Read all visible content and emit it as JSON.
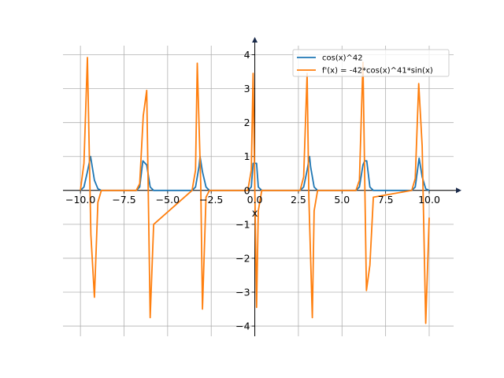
{
  "chart_data": {
    "type": "line",
    "title": "",
    "xlabel": "x",
    "ylabel": "",
    "xlim": [
      -11.0,
      11.4
    ],
    "ylim": [
      -4.3,
      4.5
    ],
    "xticks": [
      -10.0,
      -7.5,
      -5.0,
      -2.5,
      0.0,
      2.5,
      5.0,
      7.5,
      10.0
    ],
    "xtick_labels": [
      "−10.0",
      "−7.5",
      "−5.0",
      "−2.5",
      "0.0",
      "2.5",
      "5.0",
      "7.5",
      "10.0"
    ],
    "yticks": [
      -4,
      -3,
      -2,
      -1,
      0,
      1,
      2,
      3,
      4
    ],
    "ytick_labels": [
      "−4",
      "−3",
      "−2",
      "−1",
      "0",
      "1",
      "2",
      "3",
      "4"
    ],
    "grid": true,
    "legend": "top-right",
    "series": [
      {
        "name": "cos(x)^42",
        "color": "#1f77b4",
        "x": [
          -10.0,
          -9.8,
          -9.6,
          -9.42,
          -9.2,
          -9.0,
          -8.8,
          -6.8,
          -6.6,
          -6.42,
          -6.2,
          -6.0,
          -5.8,
          -3.6,
          -3.4,
          -3.2,
          -3.14,
          -3.0,
          -2.8,
          -2.6,
          -0.4,
          -0.2,
          -0.1,
          0.1,
          0.2,
          0.4,
          2.6,
          2.8,
          3.0,
          3.14,
          3.2,
          3.4,
          3.6,
          5.8,
          6.0,
          6.2,
          6.3,
          6.42,
          6.6,
          6.8,
          9.0,
          9.2,
          9.42,
          9.6,
          9.8,
          10.0
        ],
        "y": [
          0.0,
          0.1,
          0.55,
          1.0,
          0.3,
          0.05,
          0.0,
          0.0,
          0.1,
          0.87,
          0.75,
          0.1,
          0.0,
          0.0,
          0.1,
          0.7,
          1.0,
          0.55,
          0.1,
          0.0,
          0.0,
          0.1,
          0.8,
          0.8,
          0.1,
          0.0,
          0.0,
          0.1,
          0.6,
          1.0,
          0.7,
          0.1,
          0.0,
          0.0,
          0.1,
          0.75,
          0.87,
          0.87,
          0.1,
          0.0,
          0.0,
          0.1,
          0.95,
          0.4,
          0.05,
          0.0
        ]
      },
      {
        "name": "f'(x) = -42*cos(x)^41*sin(x)",
        "color": "#ff7f0e",
        "x": [
          -10.0,
          -9.8,
          -9.6,
          -9.4,
          -9.2,
          -9.0,
          -8.8,
          -6.8,
          -6.6,
          -6.4,
          -6.2,
          -6.0,
          -5.8,
          -3.6,
          -3.4,
          -3.3,
          -3.1,
          -3.0,
          -2.8,
          -2.6,
          -0.4,
          -0.2,
          -0.1,
          0.1,
          0.2,
          0.4,
          2.6,
          2.8,
          3.0,
          3.1,
          3.3,
          3.4,
          3.6,
          5.8,
          6.0,
          6.2,
          6.4,
          6.6,
          6.8,
          9.0,
          9.2,
          9.4,
          9.6,
          9.8,
          10.0
        ],
        "y": [
          0.0,
          0.8,
          3.92,
          -1.3,
          -3.15,
          -0.35,
          0.0,
          0.0,
          0.2,
          2.2,
          2.95,
          -3.75,
          -1.0,
          0.0,
          0.6,
          3.75,
          0.2,
          -3.5,
          -0.2,
          0.0,
          0.0,
          0.6,
          3.45,
          -3.45,
          -0.6,
          0.0,
          0.0,
          0.4,
          3.45,
          -0.2,
          -3.75,
          -0.6,
          0.0,
          0.0,
          0.3,
          3.78,
          -2.95,
          -2.2,
          -0.2,
          0.0,
          0.35,
          3.15,
          1.3,
          -3.92,
          -0.8
        ]
      }
    ]
  }
}
